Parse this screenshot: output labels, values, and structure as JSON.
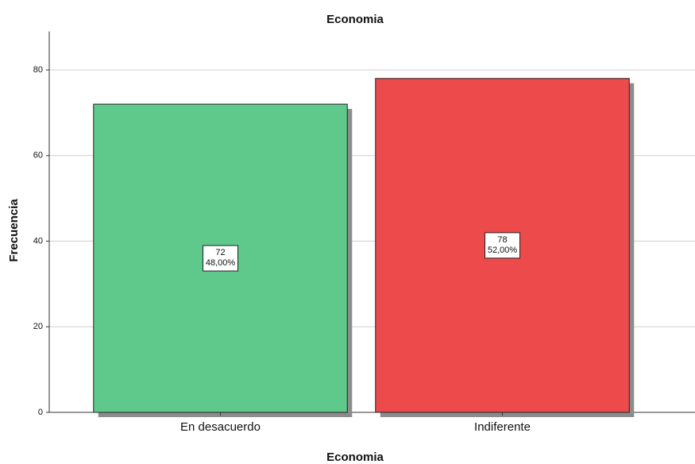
{
  "chart_data": {
    "type": "bar",
    "title": "Economia",
    "x_label": "Economia",
    "y_label": "Frecuencia",
    "categories": [
      "En desacuerdo",
      "Indiferente"
    ],
    "values": [
      72,
      78
    ],
    "percentages": [
      48,
      52
    ],
    "percentage_labels": [
      "48,00%",
      "52,00%"
    ],
    "colors": [
      "#5ec98b",
      "#ec4a4b"
    ],
    "ylim": [
      0,
      89
    ],
    "yticks": [
      0,
      20,
      40,
      60,
      80
    ],
    "grid": true
  }
}
